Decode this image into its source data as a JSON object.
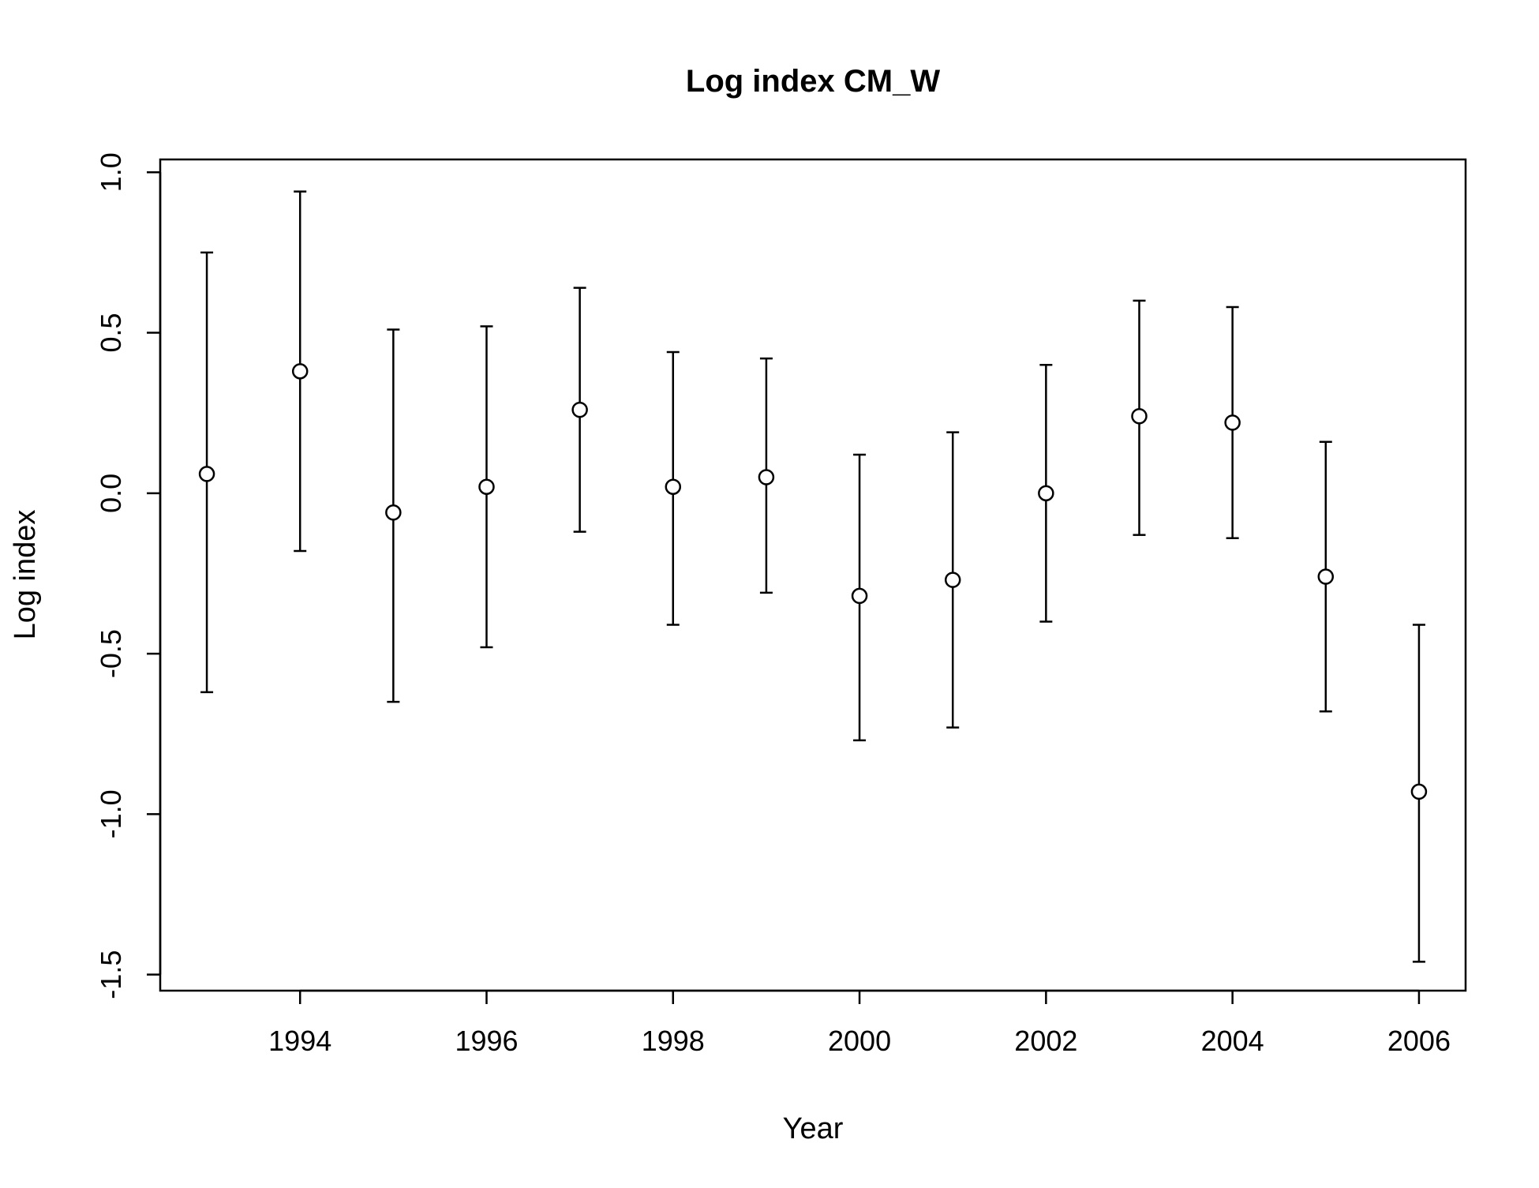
{
  "chart_data": {
    "type": "scatter",
    "title": "Log index CM_W",
    "xlabel": "Year",
    "ylabel": "Log index",
    "xlim": [
      1992.5,
      2006.5
    ],
    "ylim": [
      -1.55,
      1.04
    ],
    "x_ticks": [
      "1994",
      "1996",
      "1998",
      "2000",
      "2002",
      "2004",
      "2006"
    ],
    "y_ticks": [
      "-1.5",
      "-1.0",
      "-0.5",
      "0.0",
      "0.5",
      "1.0"
    ],
    "grid": false,
    "legend": "none",
    "marker": "open-circle",
    "error_bars": true,
    "points": [
      {
        "year": 1993,
        "value": 0.06,
        "lower": -0.62,
        "upper": 0.75
      },
      {
        "year": 1994,
        "value": 0.38,
        "lower": -0.18,
        "upper": 0.94
      },
      {
        "year": 1995,
        "value": -0.06,
        "lower": -0.65,
        "upper": 0.51
      },
      {
        "year": 1996,
        "value": 0.02,
        "lower": -0.48,
        "upper": 0.52
      },
      {
        "year": 1997,
        "value": 0.26,
        "lower": -0.12,
        "upper": 0.64
      },
      {
        "year": 1998,
        "value": 0.02,
        "lower": -0.41,
        "upper": 0.44
      },
      {
        "year": 1999,
        "value": 0.05,
        "lower": -0.31,
        "upper": 0.42
      },
      {
        "year": 2000,
        "value": -0.32,
        "lower": -0.77,
        "upper": 0.12
      },
      {
        "year": 2001,
        "value": -0.27,
        "lower": -0.73,
        "upper": 0.19
      },
      {
        "year": 2002,
        "value": 0.0,
        "lower": -0.4,
        "upper": 0.4
      },
      {
        "year": 2003,
        "value": 0.24,
        "lower": -0.13,
        "upper": 0.6
      },
      {
        "year": 2004,
        "value": 0.22,
        "lower": -0.14,
        "upper": 0.58
      },
      {
        "year": 2005,
        "value": -0.26,
        "lower": -0.68,
        "upper": 0.16
      },
      {
        "year": 2006,
        "value": -0.93,
        "lower": -1.46,
        "upper": -0.41
      }
    ],
    "colors": {
      "line": "#000000",
      "marker_fill": "#ffffff",
      "background": "#ffffff"
    }
  }
}
